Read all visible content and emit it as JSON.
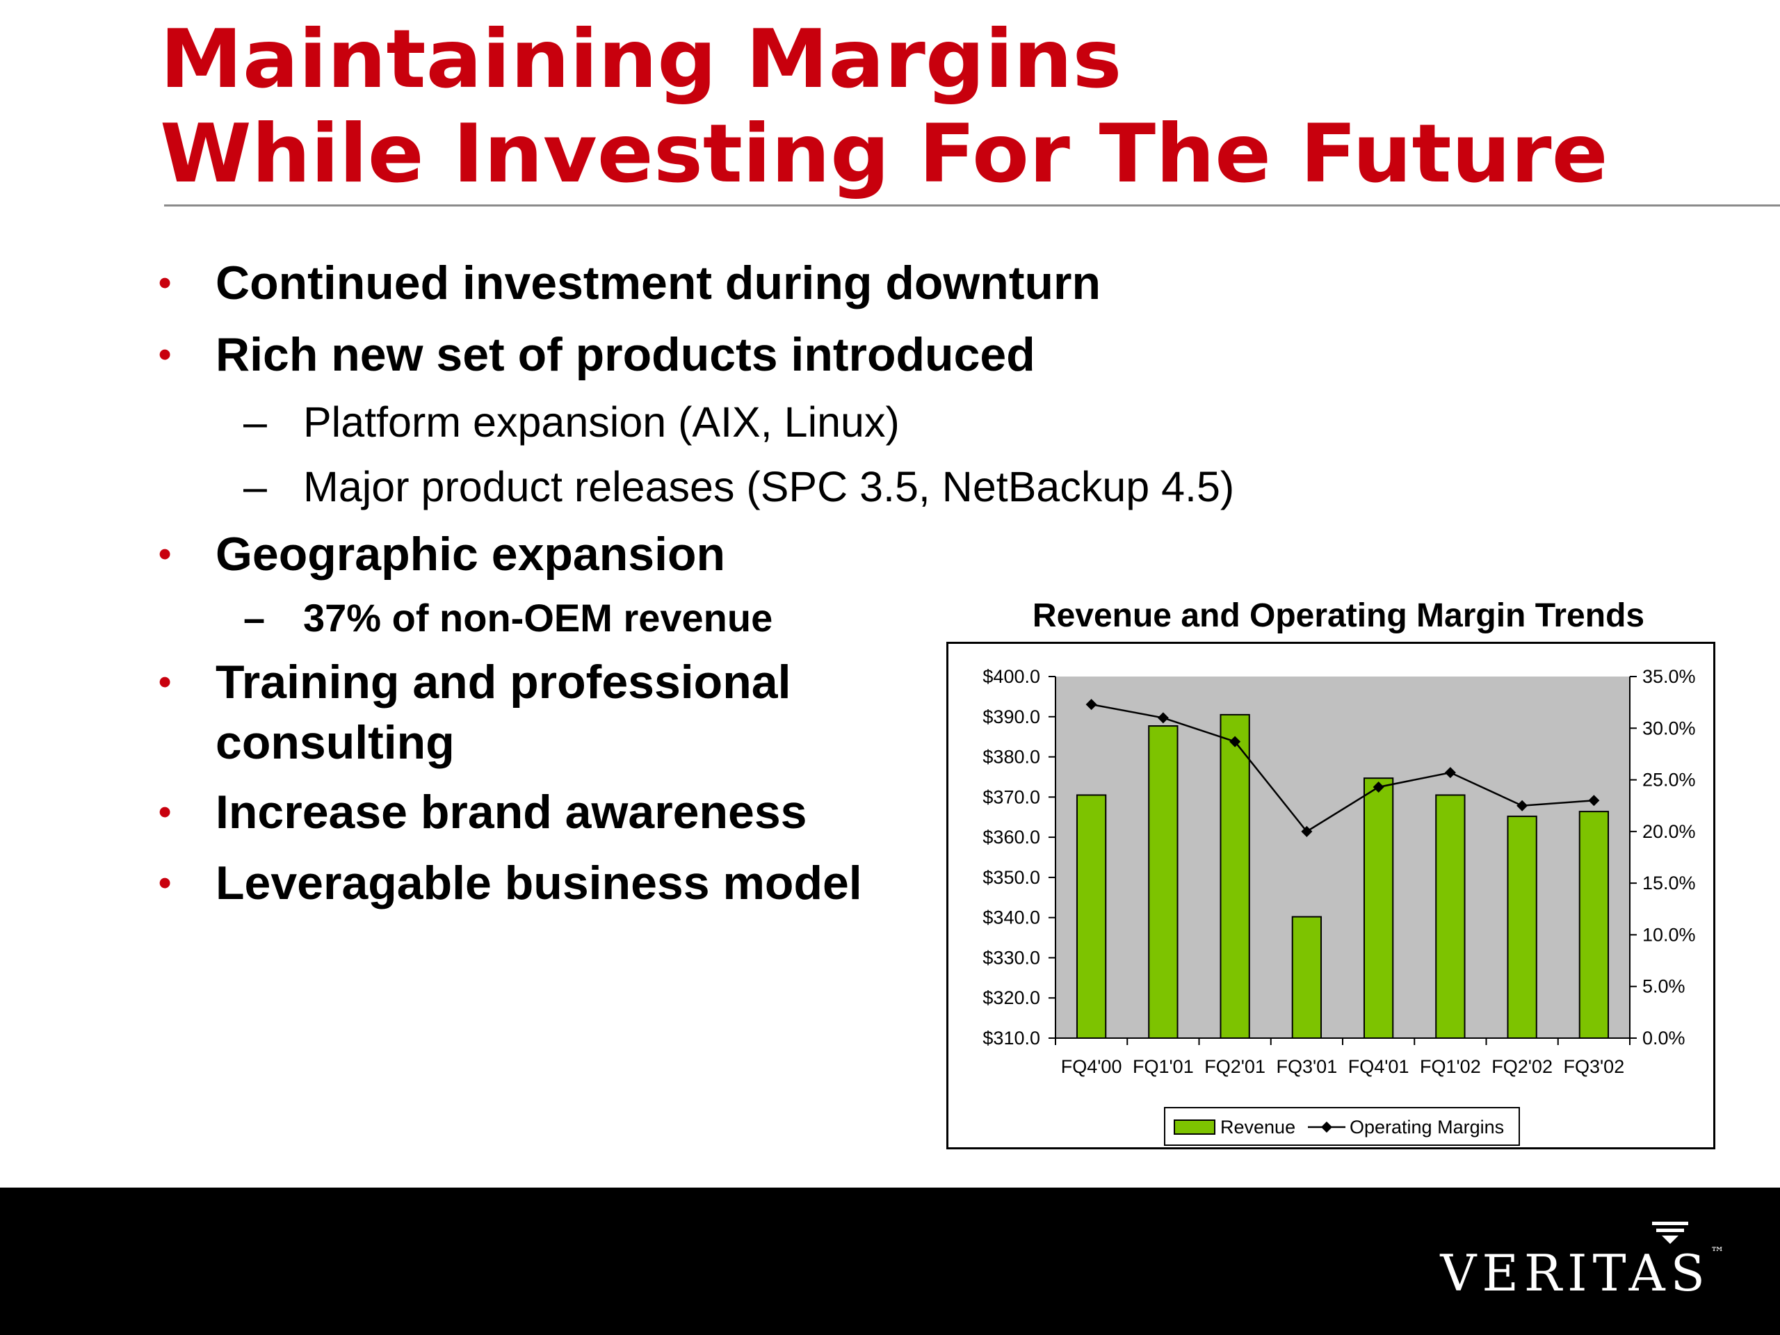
{
  "slide": {
    "title_line1": "Maintaining Margins",
    "title_line2": "While Investing For The Future"
  },
  "bullets": [
    {
      "text": "Continued investment during downturn"
    },
    {
      "text": "Rich new set of products introduced"
    },
    {
      "text": "Geographic expansion"
    },
    {
      "text": "Training and professional"
    },
    {
      "text": "consulting"
    },
    {
      "text": "Increase brand awareness"
    },
    {
      "text": "Leveragable business model"
    }
  ],
  "subbullets": [
    {
      "text": "Platform expansion (AIX, Linux)"
    },
    {
      "text": "Major product releases (SPC 3.5, NetBackup 4.5)"
    },
    {
      "text": "37% of non-OEM revenue"
    }
  ],
  "symbols": {
    "bullet": "•",
    "dash": "–"
  },
  "colors": {
    "accent": "#c8000d",
    "bar": "#7dc300",
    "plot_bg": "#c0c0c0",
    "footer": "#000000"
  },
  "brand": {
    "logo_text": "VERITAS",
    "trademark": "™"
  },
  "chart_data": {
    "type": "bar",
    "title": "Revenue and Operating Margin Trends",
    "categories": [
      "FQ4'00",
      "FQ1'01",
      "FQ2'01",
      "FQ3'01",
      "FQ4'01",
      "FQ1'02",
      "FQ2'02",
      "FQ3'02"
    ],
    "series": [
      {
        "name": "Revenue",
        "type": "bar",
        "axis": "left",
        "values": [
          370.5,
          387.7,
          390.5,
          340.2,
          374.7,
          370.5,
          365.2,
          366.4
        ]
      },
      {
        "name": "Operating Margins",
        "type": "line",
        "axis": "right",
        "values": [
          32.3,
          31.0,
          28.7,
          20.0,
          24.3,
          25.7,
          22.5,
          23.0
        ]
      }
    ],
    "y_left": {
      "min": 310,
      "max": 400,
      "step": 10,
      "ticks": [
        "$310.0",
        "$320.0",
        "$330.0",
        "$340.0",
        "$350.0",
        "$360.0",
        "$370.0",
        "$380.0",
        "$390.0",
        "$400.0"
      ]
    },
    "y_right": {
      "min": 0,
      "max": 35,
      "step": 5,
      "ticks": [
        "0.0%",
        "5.0%",
        "10.0%",
        "15.0%",
        "20.0%",
        "25.0%",
        "30.0%",
        "35.0%"
      ]
    },
    "legend_position": "bottom-center",
    "grid": false
  }
}
